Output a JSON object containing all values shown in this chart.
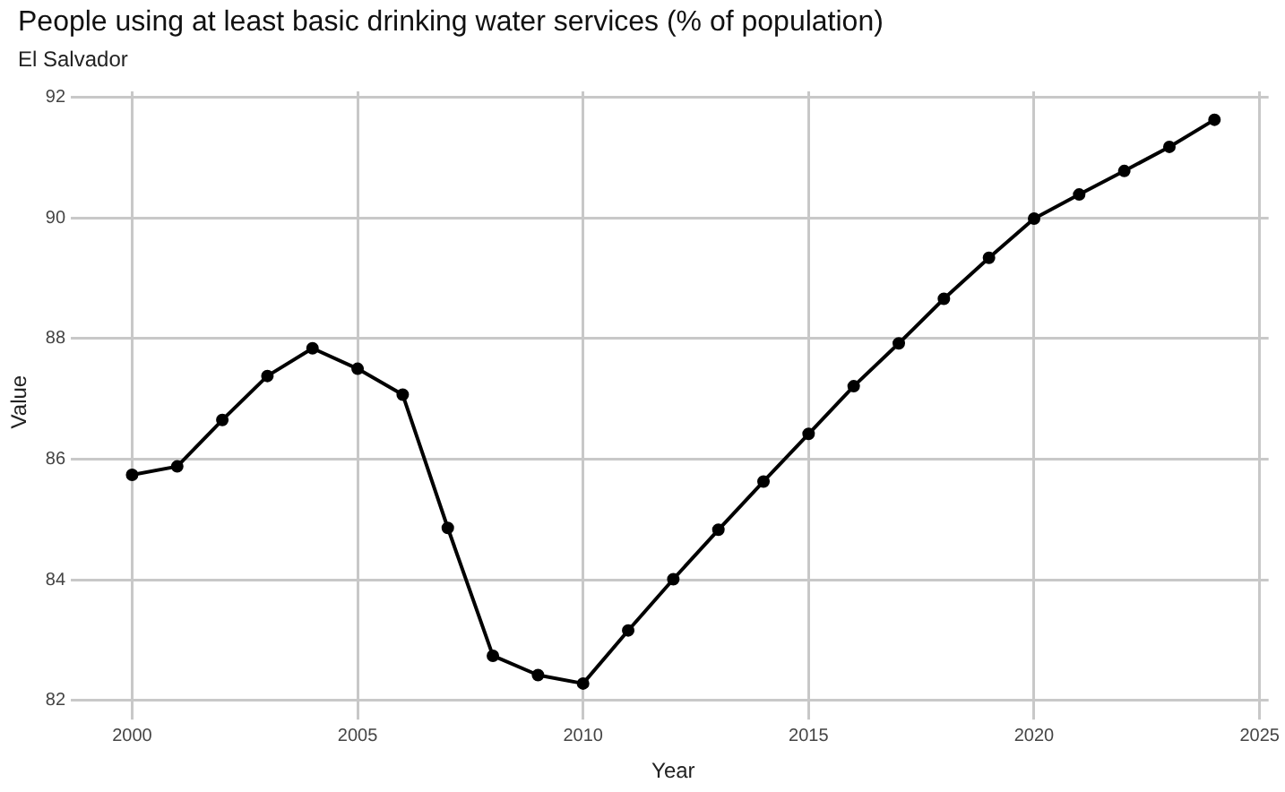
{
  "chart_data": {
    "type": "line",
    "title": "People using at least basic drinking water services (% of population)",
    "subtitle": "El Salvador",
    "xlabel": "Year",
    "ylabel": "Value",
    "x": [
      2000,
      2001,
      2002,
      2003,
      2004,
      2005,
      2006,
      2007,
      2008,
      2009,
      2010,
      2011,
      2012,
      2013,
      2014,
      2015,
      2016,
      2017,
      2018,
      2019,
      2020,
      2021,
      2022,
      2023,
      2024
    ],
    "series": [
      {
        "color": "#000000",
        "values": [
          85.74,
          85.88,
          86.65,
          87.38,
          87.84,
          87.5,
          87.07,
          84.86,
          82.74,
          82.42,
          82.28,
          83.16,
          84.01,
          84.83,
          85.63,
          86.42,
          87.21,
          87.92,
          88.66,
          89.34,
          89.99,
          90.39,
          90.78,
          91.18,
          91.63
        ]
      }
    ],
    "xlim": [
      1998.8,
      2025.2
    ],
    "xticks": [
      2000,
      2005,
      2010,
      2015,
      2020,
      2025
    ],
    "ylim": [
      81.8,
      92.1
    ],
    "yticks": [
      82,
      84,
      86,
      88,
      90,
      92
    ],
    "grid": true,
    "legend": false,
    "marker": "circle",
    "line_style": "solid"
  }
}
